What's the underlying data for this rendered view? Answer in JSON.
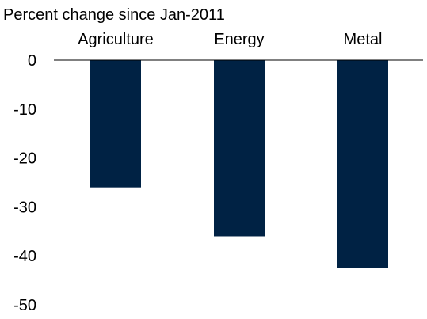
{
  "chart_data": {
    "type": "bar",
    "ylabel": "Percent change since Jan-2011",
    "categories": [
      "Agriculture",
      "Energy",
      "Metal"
    ],
    "values": [
      -26,
      -36,
      -42.5
    ],
    "ylim": [
      -50,
      0
    ],
    "yticks": [
      0,
      -10,
      -20,
      -30,
      -40,
      -50
    ],
    "category_label_position": "top",
    "grid": false,
    "bar_color": "#002244"
  }
}
